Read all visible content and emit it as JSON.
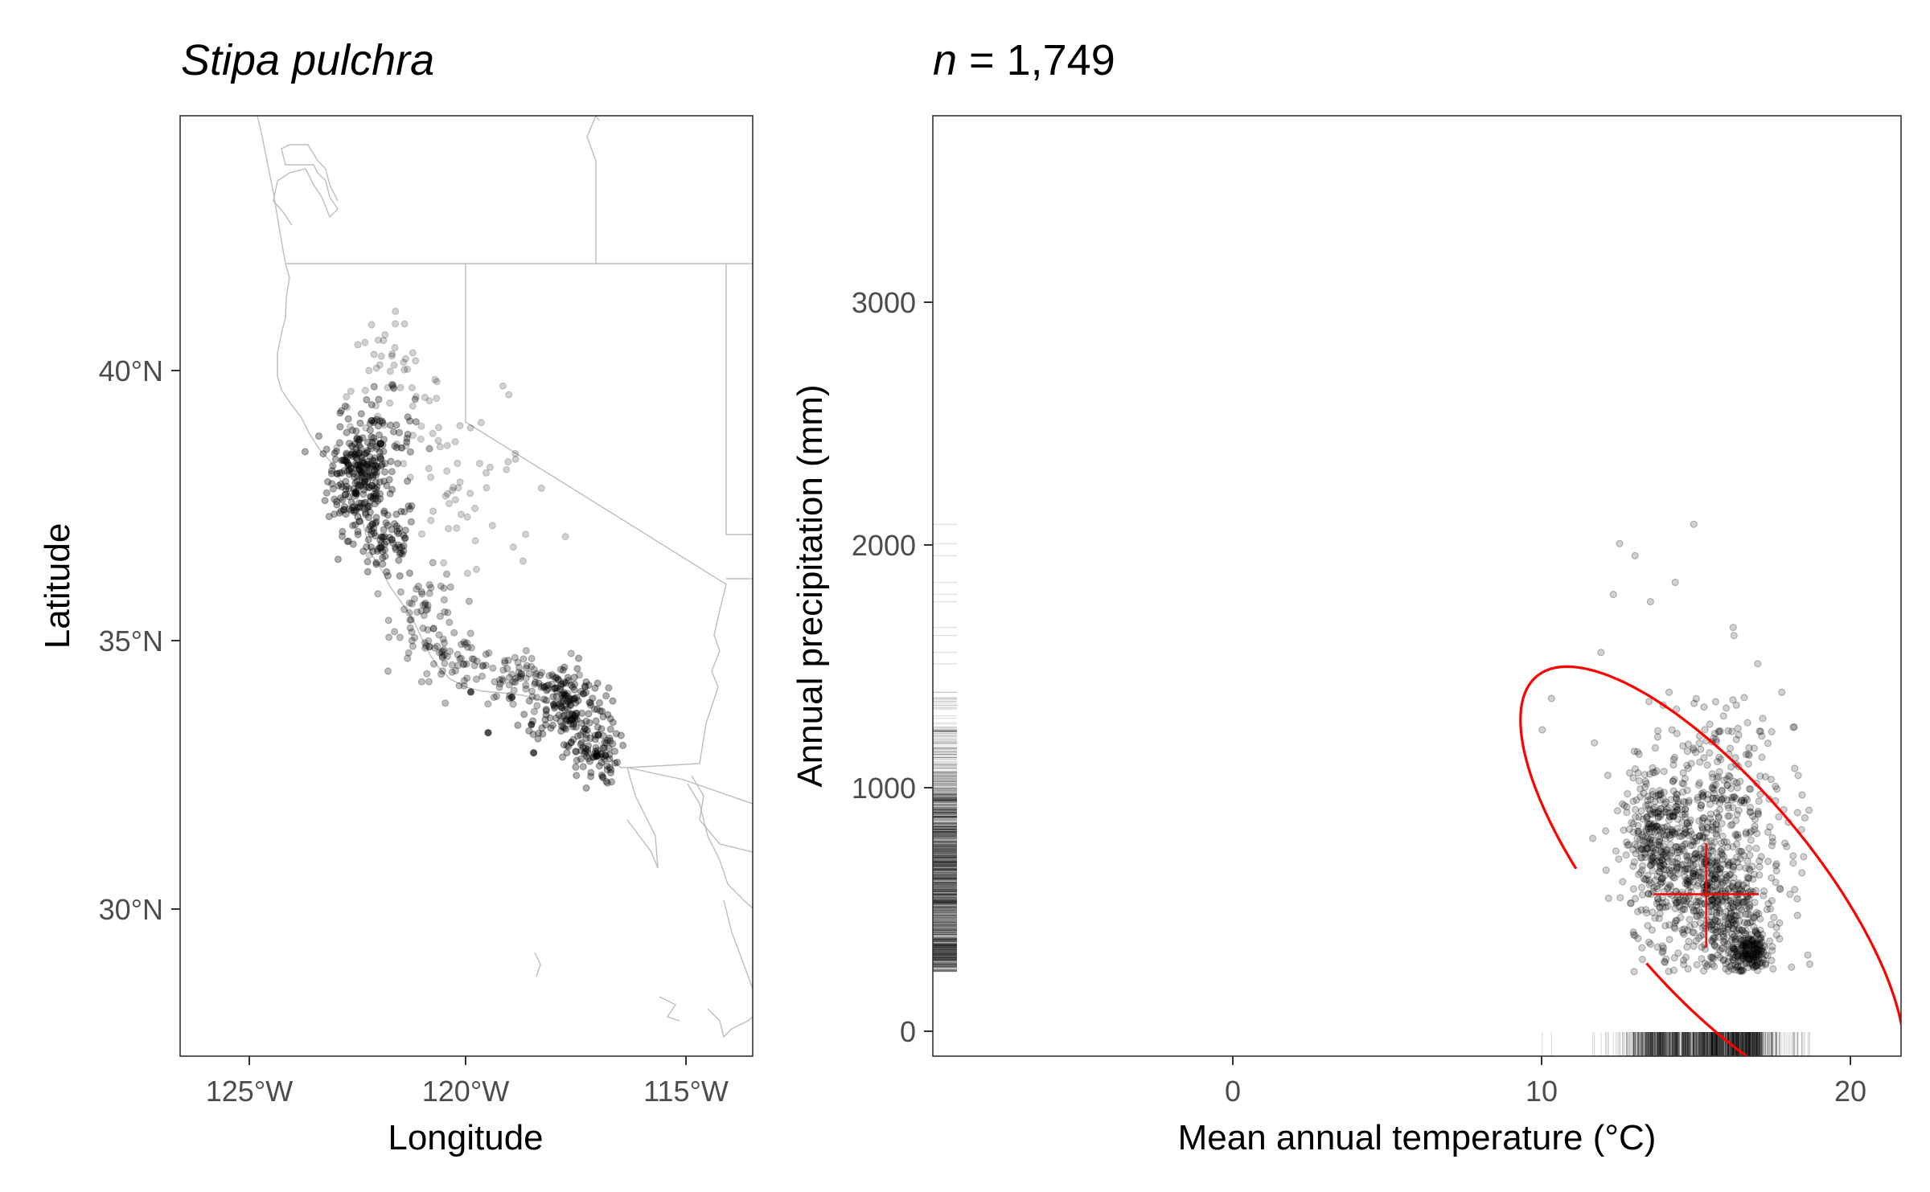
{
  "map_panel": {
    "title": "Stipa pulchra",
    "xlabel": "Longitude",
    "ylabel": "Latitude",
    "x_ticks": [
      "125°W",
      "120°W",
      "115°W"
    ],
    "y_ticks": [
      "30°N",
      "35°N",
      "40°N"
    ]
  },
  "climate_panel": {
    "title_prefix": "n",
    "title_rest": " = 1,749",
    "xlabel": "Mean annual temperature (°C)",
    "ylabel": "Annual precipitation (mm)",
    "x_ticks": [
      "0",
      "10",
      "20"
    ],
    "y_ticks": [
      "0",
      "1000",
      "2000",
      "3000"
    ]
  },
  "chart_data": [
    {
      "type": "scatter",
      "title": "Stipa pulchra",
      "xlabel": "Longitude",
      "ylabel": "Latitude",
      "xlim": [
        -126.6,
        -113.4
      ],
      "ylim": [
        27.3,
        44.6
      ],
      "grid": false,
      "clusters": [
        {
          "lon": -122.5,
          "lat": 37.9,
          "spread": [
            0.35,
            0.45
          ],
          "n": 200,
          "density": "high"
        },
        {
          "lon": -122.1,
          "lat": 38.6,
          "spread": [
            0.45,
            0.45
          ],
          "n": 90,
          "density": "high"
        },
        {
          "lon": -121.8,
          "lat": 39.6,
          "spread": [
            0.6,
            0.6
          ],
          "n": 50,
          "density": "low"
        },
        {
          "lon": -121.9,
          "lat": 36.8,
          "spread": [
            0.4,
            0.4
          ],
          "n": 90,
          "density": "high"
        },
        {
          "lon": -120.9,
          "lat": 35.4,
          "spread": [
            0.4,
            0.4
          ],
          "n": 60,
          "density": "medium"
        },
        {
          "lon": -120.2,
          "lat": 34.6,
          "spread": [
            0.5,
            0.2
          ],
          "n": 50,
          "density": "medium"
        },
        {
          "lon": -118.8,
          "lat": 34.2,
          "spread": [
            0.6,
            0.25
          ],
          "n": 70,
          "density": "medium"
        },
        {
          "lon": -117.7,
          "lat": 33.8,
          "spread": [
            0.45,
            0.35
          ],
          "n": 150,
          "density": "high"
        },
        {
          "lon": -117.1,
          "lat": 32.9,
          "spread": [
            0.3,
            0.3
          ],
          "n": 100,
          "density": "high"
        },
        {
          "lon": -120.0,
          "lat": 37.8,
          "spread": [
            1.0,
            1.0
          ],
          "n": 60,
          "density": "low"
        }
      ],
      "outlines": "California and neighboring state borders (light gray)"
    },
    {
      "type": "scatter",
      "title": "n = 1,749",
      "xlabel": "Mean annual temperature (°C)",
      "ylabel": "Annual precipitation (mm)",
      "xlim": [
        -9.8,
        21.5
      ],
      "ylim": [
        -120,
        3770
      ],
      "n": 1749,
      "grid": false,
      "clusters": [
        {
          "x": 13.6,
          "y": 760,
          "sx": 0.55,
          "sy": 130,
          "n": 280
        },
        {
          "x": 15.4,
          "y": 540,
          "sx": 0.8,
          "sy": 150,
          "n": 380
        },
        {
          "x": 16.6,
          "y": 320,
          "sx": 0.35,
          "sy": 45,
          "n": 200
        },
        {
          "x": 15.2,
          "y": 1000,
          "sx": 1.2,
          "sy": 200,
          "n": 200
        },
        {
          "x": 15.6,
          "y": 650,
          "sx": 1.3,
          "sy": 280,
          "n": 300
        }
      ],
      "mean": {
        "x": 15.2,
        "y": 550
      },
      "cross_bars": {
        "x": [
          13.5,
          16.9
        ],
        "y": [
          330,
          760
        ]
      },
      "ellipse_color": "#ff0000",
      "ellipse_range": {
        "x": [
          11.9,
          18.9
        ],
        "y": [
          60,
          1110
        ]
      },
      "rug_x_range": [
        9.8,
        18.6
      ],
      "rug_y_range": [
        230,
        2080
      ]
    }
  ]
}
